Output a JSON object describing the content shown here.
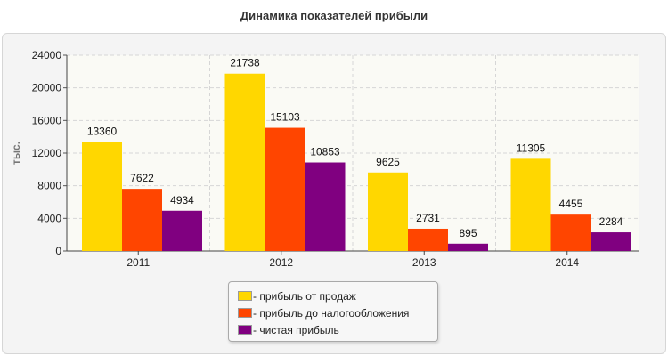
{
  "chart_data": {
    "type": "bar",
    "title": "Динамика показателей прибыли",
    "ylabel": "тыс.",
    "xlabel": "",
    "categories": [
      "2011",
      "2012",
      "2013",
      "2014"
    ],
    "ylim": [
      0,
      24000
    ],
    "yticks": [
      0,
      4000,
      8000,
      12000,
      16000,
      20000,
      24000
    ],
    "grid": true,
    "legend_position": "bottom-center",
    "series": [
      {
        "name": "- прибыль от продаж",
        "color": "#ffd700",
        "values": [
          13360,
          21738,
          9625,
          11305
        ]
      },
      {
        "name": "- прибыль до налогообложения",
        "color": "#ff4500",
        "values": [
          7622,
          15103,
          2731,
          4455
        ]
      },
      {
        "name": "- чистая прибыль",
        "color": "#800080",
        "values": [
          4934,
          10853,
          895,
          2284
        ]
      }
    ]
  }
}
